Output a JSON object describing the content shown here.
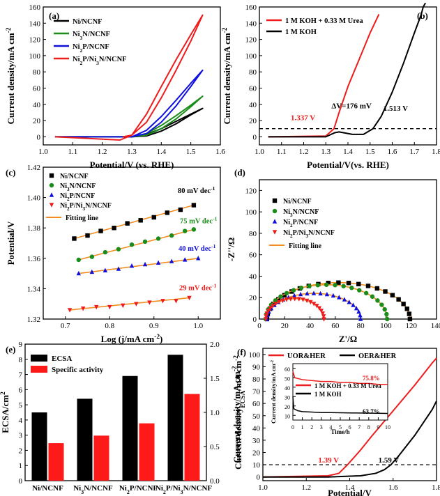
{
  "figure": {
    "panels": [
      {
        "letter": "(a)",
        "xlabel": "Potential/V (vs. RHE)",
        "ylabel": "Current density/mA cm",
        "xticks": [
          "1.0",
          "1.1",
          "1.2",
          "1.3",
          "1.4",
          "1.5",
          "1.6"
        ],
        "yticks": [
          "0",
          "20",
          "40",
          "60",
          "80",
          "100",
          "120",
          "140",
          "160"
        ]
      },
      {
        "letter": "(b)",
        "xlabel": "Potential/V(vs. RHE)",
        "ylabel": "Current density/mA cm",
        "xticks": [
          "1.0",
          "1.1",
          "1.2",
          "1.3",
          "1.4",
          "1.5",
          "1.6",
          "1.7",
          "1.8"
        ],
        "yticks": [
          "0",
          "20",
          "40",
          "60",
          "80",
          "100",
          "120",
          "140",
          "160"
        ]
      },
      {
        "letter": "(c)",
        "xlabel": "Log (j/mA cm",
        "ylabel": "Potential/V",
        "xticks": [
          "0.7",
          "0.8",
          "0.9",
          "1.0"
        ],
        "yticks": [
          "1.32",
          "1.34",
          "1.36",
          "1.38",
          "1.40",
          "1.42"
        ]
      },
      {
        "letter": "(d)",
        "xlabel": "Z'/Ω",
        "ylabel": "-Z''/Ω",
        "xticks": [
          "0",
          "20",
          "40",
          "60",
          "80",
          "100",
          "120",
          "140"
        ],
        "yticks": [
          "0",
          "20",
          "40",
          "60",
          "80",
          "100",
          "120"
        ]
      },
      {
        "letter": "(e)",
        "ylabel_left": "ECSA/cm",
        "ylabel_right": "Current density",
        "xticks": [
          "Ni/NCNF",
          "Ni3N/NCNF",
          "Ni2P/NCNF",
          "Ni2P/Ni3N/NCNF"
        ],
        "yticks_left": [
          "0",
          "1",
          "2",
          "3",
          "4",
          "5",
          "6",
          "7",
          "8",
          "9"
        ],
        "yticks_right": [
          "0.0",
          "0.5",
          "1.0",
          "1.5",
          "2.0"
        ]
      },
      {
        "letter": "(f)",
        "xlabel": "Potential/V",
        "ylabel": "Current density/mA cm",
        "xticks": [
          "1.0",
          "1.2",
          "1.4",
          "1.6",
          "1.8"
        ],
        "yticks": [
          "0",
          "10",
          "20",
          "30",
          "40",
          "50",
          "60",
          "70",
          "80",
          "90",
          "100"
        ]
      }
    ]
  },
  "chart_data": [
    {
      "panel": "(a)",
      "type": "line",
      "xlim": [
        1.0,
        1.6
      ],
      "ylim": [
        -10,
        160
      ],
      "series": [
        {
          "name": "Ni/NCNF",
          "color": "#000000",
          "x": [
            1.04,
            1.3,
            1.35,
            1.4,
            1.45,
            1.5,
            1.54
          ],
          "y": [
            0,
            0,
            3,
            10,
            19,
            28,
            35
          ],
          "x_rev": [
            1.54,
            1.5,
            1.45,
            1.4,
            1.35,
            1.3
          ],
          "y_rev": [
            35,
            27,
            16,
            7,
            1,
            0
          ]
        },
        {
          "name": "Ni3N/NCNF",
          "color": "#1a8c1a",
          "x": [
            1.04,
            1.3,
            1.35,
            1.4,
            1.45,
            1.5,
            1.54
          ],
          "y": [
            0,
            0,
            4,
            14,
            26,
            39,
            50
          ],
          "x_rev": [
            1.54,
            1.5,
            1.45,
            1.4,
            1.35,
            1.3
          ],
          "y_rev": [
            50,
            37,
            22,
            10,
            2,
            0
          ]
        },
        {
          "name": "Ni2P/NCNF",
          "color": "#1010dd",
          "x": [
            1.04,
            1.3,
            1.35,
            1.4,
            1.45,
            1.5,
            1.54
          ],
          "y": [
            0,
            0,
            8,
            25,
            45,
            66,
            82
          ],
          "x_rev": [
            1.54,
            1.5,
            1.45,
            1.4,
            1.35,
            1.3
          ],
          "y_rev": [
            82,
            62,
            38,
            18,
            4,
            0
          ]
        },
        {
          "name": "Ni2P/Ni3N/NCNF",
          "color": "#ee1c1c",
          "x": [
            1.04,
            1.26,
            1.3,
            1.35,
            1.4,
            1.45,
            1.5,
            1.54
          ],
          "y": [
            0,
            -4,
            2,
            28,
            62,
            95,
            126,
            150
          ],
          "x_rev": [
            1.54,
            1.5,
            1.45,
            1.4,
            1.35,
            1.3,
            1.27
          ],
          "y_rev": [
            150,
            118,
            82,
            48,
            18,
            2,
            0
          ]
        }
      ]
    },
    {
      "panel": "(b)",
      "type": "line",
      "xlim": [
        1.0,
        1.8
      ],
      "ylim": [
        -10,
        160
      ],
      "series": [
        {
          "name": "1 M KOH + 0.33 M Urea",
          "color": "#ee1c1c",
          "x": [
            1.04,
            1.3,
            1.337,
            1.36,
            1.4,
            1.45,
            1.5,
            1.54
          ],
          "y": [
            0,
            1,
            10,
            30,
            62,
            95,
            128,
            151
          ]
        },
        {
          "name": "1 M KOH",
          "color": "#000000",
          "x": [
            1.04,
            1.3,
            1.34,
            1.36,
            1.38,
            1.42,
            1.47,
            1.513,
            1.55,
            1.6,
            1.65,
            1.7,
            1.73,
            1.74,
            1.75
          ],
          "y": [
            0,
            0,
            5,
            6,
            5,
            3,
            3,
            10,
            25,
            55,
            90,
            128,
            150,
            160,
            170
          ]
        }
      ],
      "annotations": [
        "1.337 V",
        "ΔV=176 mV",
        "1.513 V"
      ],
      "reference_line_y": 10
    },
    {
      "panel": "(c)",
      "type": "scatter",
      "xlim": [
        0.65,
        1.05
      ],
      "ylim": [
        1.32,
        1.42
      ],
      "series": [
        {
          "name": "Ni/NCNF",
          "color": "#000000",
          "marker": "square",
          "x": [
            0.72,
            0.75,
            0.78,
            0.81,
            0.84,
            0.87,
            0.9,
            0.93,
            0.96,
            0.99
          ],
          "y": [
            1.373,
            1.375,
            1.378,
            1.38,
            1.383,
            1.385,
            1.387,
            1.39,
            1.392,
            1.395
          ],
          "label": "80 mV dec"
        },
        {
          "name": "Ni3N/NCNF",
          "color": "#1a8c1a",
          "marker": "circle",
          "x": [
            0.73,
            0.76,
            0.79,
            0.82,
            0.85,
            0.88,
            0.91,
            0.94,
            0.97,
            0.99
          ],
          "y": [
            1.359,
            1.361,
            1.364,
            1.366,
            1.369,
            1.371,
            1.373,
            1.375,
            1.378,
            1.379
          ],
          "label": "75 mV dec"
        },
        {
          "name": "Ni2P/NCNF",
          "color": "#1010dd",
          "marker": "triangle-up",
          "x": [
            0.73,
            0.76,
            0.79,
            0.82,
            0.85,
            0.88,
            0.91,
            0.94,
            0.97,
            1.0
          ],
          "y": [
            1.35,
            1.351,
            1.352,
            1.353,
            1.355,
            1.356,
            1.357,
            1.358,
            1.359,
            1.36
          ],
          "label": "40 mV dec"
        },
        {
          "name": "Ni2P/Ni3N/NCNF",
          "color": "#ee1c1c",
          "marker": "triangle-down",
          "x": [
            0.71,
            0.74,
            0.77,
            0.8,
            0.83,
            0.86,
            0.89,
            0.92,
            0.95,
            0.98
          ],
          "y": [
            1.326,
            1.327,
            1.328,
            1.328,
            1.329,
            1.33,
            1.331,
            1.332,
            1.332,
            1.334
          ],
          "label": "29 mV dec"
        }
      ],
      "fit_name": "Fitting line",
      "fit_color": "#f28c1e"
    },
    {
      "panel": "(d)",
      "type": "scatter",
      "xlim": [
        0,
        140
      ],
      "ylim": [
        0,
        130
      ],
      "series": [
        {
          "name": "Ni/NCNF",
          "color": "#000000",
          "marker": "square",
          "arc": [
            6,
            119,
            34
          ]
        },
        {
          "name": "Ni3N/NCNF",
          "color": "#1a8c1a",
          "marker": "circle",
          "arc": [
            5,
            101,
            32
          ]
        },
        {
          "name": "Ni2P/NCNF",
          "color": "#1010dd",
          "marker": "triangle-up",
          "arc": [
            6,
            80,
            24
          ]
        },
        {
          "name": "Ni2P/Ni3N/NCNF",
          "color": "#ee1c1c",
          "marker": "triangle-down",
          "arc": [
            5,
            51,
            19
          ]
        }
      ],
      "fit_name": "Fitting line",
      "fit_color": "#f28c1e"
    },
    {
      "panel": "(e)",
      "type": "bar",
      "ylim_left": [
        0,
        9
      ],
      "ylim_right": [
        0,
        2.0
      ],
      "categories": [
        "Ni/NCNF",
        "Ni3N/NCNF",
        "Ni2P/NCNF",
        "Ni2P/Ni3N/NCNF"
      ],
      "series": [
        {
          "name": "ECSA",
          "color": "#000000",
          "axis": "left",
          "values": [
            4.5,
            5.4,
            6.9,
            8.3
          ]
        },
        {
          "name": "Specific activity",
          "color": "#ff1a1a",
          "axis": "right",
          "values": [
            0.55,
            0.66,
            0.84,
            1.27
          ]
        }
      ]
    },
    {
      "panel": "(f)",
      "type": "line",
      "xlim": [
        1.0,
        1.8
      ],
      "ylim": [
        -3,
        105
      ],
      "series": [
        {
          "name": "UOR&HER",
          "color": "#ee1c1c",
          "x": [
            1.0,
            1.3,
            1.35,
            1.39,
            1.45,
            1.5,
            1.6,
            1.7,
            1.78,
            1.8
          ],
          "y": [
            0,
            1,
            3,
            10,
            22,
            33,
            54,
            75,
            93,
            97
          ]
        },
        {
          "name": "OER&HER",
          "color": "#000000",
          "x": [
            1.0,
            1.3,
            1.45,
            1.52,
            1.56,
            1.59,
            1.62,
            1.7,
            1.78,
            1.8
          ],
          "y": [
            0,
            0,
            1,
            3,
            6,
            10,
            16,
            34,
            55,
            62
          ]
        }
      ],
      "annotations": [
        "1.39 V",
        "1.59 V"
      ],
      "reference_line_y": 10,
      "inset": {
        "xlabel": "Time/h",
        "ylabel": "Current density/mA cm",
        "xticks": [
          "0",
          "1",
          "2",
          "3",
          "4",
          "5",
          "6",
          "7",
          "8",
          "9",
          "10"
        ],
        "yticks": [
          "10",
          "20",
          "30",
          "40",
          "50",
          "60"
        ],
        "xlim": [
          0,
          10
        ],
        "ylim": [
          5,
          65
        ],
        "series": [
          {
            "name": "1 M KOH + 0.33 M Urea",
            "color": "#ee1c1c",
            "x": [
              0,
              0.2,
              1,
              2,
              3,
              4,
              5,
              6,
              7,
              8,
              9,
              10
            ],
            "y": [
              57,
              50,
              48,
              47,
              46,
              46,
              45,
              45,
              44,
              44,
              43,
              43
            ]
          },
          {
            "name": "1 M KOH",
            "color": "#000000",
            "x": [
              0,
              0.1,
              0.5,
              1,
              2,
              3,
              4,
              5,
              6,
              7,
              8,
              9,
              10
            ],
            "y": [
              30,
              17,
              15,
              14,
              13.5,
              13,
              13,
              12.8,
              12.6,
              12.5,
              12.4,
              12.2,
              12.0
            ]
          }
        ],
        "annotations": [
          "75.8%",
          "63.7%"
        ]
      }
    }
  ]
}
